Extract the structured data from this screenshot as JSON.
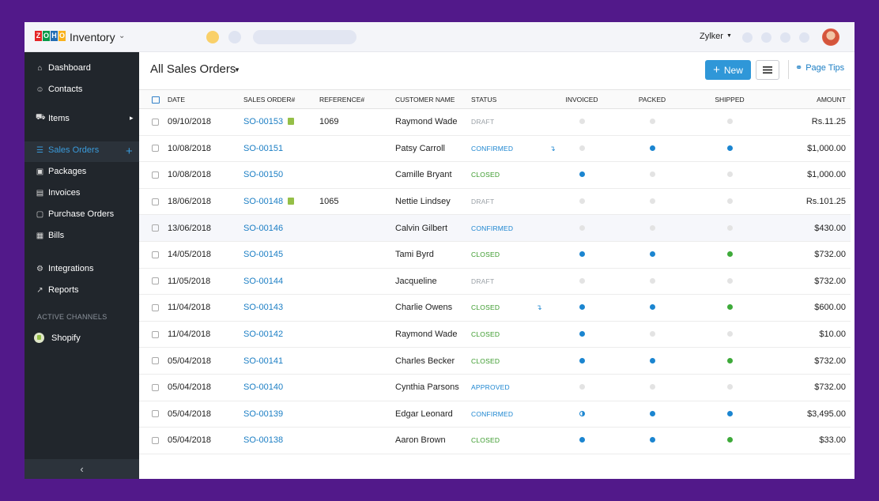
{
  "app": {
    "brand_letters": [
      "Z",
      "O",
      "H",
      "O"
    ],
    "brand_colors": [
      "#e42527",
      "#089949",
      "#226db4",
      "#f9b21d"
    ],
    "name": "Inventory"
  },
  "topbar": {
    "org_name": "Zylker",
    "accent_circle": "#f9d06a",
    "placeholder_circle": "#dfe4f1"
  },
  "sidebar": {
    "items": [
      {
        "label": "Dashboard",
        "icon": "home-icon"
      },
      {
        "label": "Contacts",
        "icon": "user-icon"
      },
      {
        "label": "Items",
        "icon": "basket-icon"
      },
      {
        "label": "Sales Orders",
        "icon": "cart-icon",
        "active": true
      },
      {
        "label": "Packages",
        "icon": "box-icon"
      },
      {
        "label": "Invoices",
        "icon": "document-icon"
      },
      {
        "label": "Purchase Orders",
        "icon": "bag-icon"
      },
      {
        "label": "Bills",
        "icon": "bill-icon"
      },
      {
        "label": "Integrations",
        "icon": "plug-icon"
      },
      {
        "label": "Reports",
        "icon": "chart-icon"
      }
    ],
    "section_title": "ACTIVE CHANNELS",
    "channel": "Shopify"
  },
  "header": {
    "view_title": "All Sales Orders",
    "new_label": "New",
    "page_tips": "Page Tips"
  },
  "columns": {
    "date": "DATE",
    "so": "SALES ORDER#",
    "ref": "REFERENCE#",
    "customer": "CUSTOMER NAME",
    "status": "STATUS",
    "invoiced": "INVOICED",
    "packed": "PACKED",
    "shipped": "SHIPPED",
    "amount": "AMOUNT"
  },
  "rows": [
    {
      "date": "09/10/2018",
      "so": "SO-00153",
      "shopify": true,
      "ref": "1069",
      "customer": "Raymond Wade",
      "status": "DRAFT",
      "dropship": false,
      "invoiced": "none",
      "packed": "none",
      "shipped": "none",
      "amount": "Rs.11.25"
    },
    {
      "date": "10/08/2018",
      "so": "SO-00151",
      "shopify": false,
      "ref": "",
      "customer": "Patsy Carroll",
      "status": "CONFIRMED",
      "dropship": true,
      "invoiced": "none",
      "packed": "blue",
      "shipped": "blue",
      "amount": "$1,000.00"
    },
    {
      "date": "10/08/2018",
      "so": "SO-00150",
      "shopify": false,
      "ref": "",
      "customer": "Camille Bryant",
      "status": "CLOSED",
      "dropship": false,
      "invoiced": "blue",
      "packed": "none",
      "shipped": "none",
      "amount": "$1,000.00"
    },
    {
      "date": "18/06/2018",
      "so": "SO-00148",
      "shopify": true,
      "ref": "1065",
      "customer": "Nettie Lindsey",
      "status": "DRAFT",
      "dropship": false,
      "invoiced": "none",
      "packed": "none",
      "shipped": "none",
      "amount": "Rs.101.25"
    },
    {
      "date": "13/06/2018",
      "so": "SO-00146",
      "shopify": false,
      "ref": "",
      "customer": "Calvin Gilbert",
      "status": "CONFIRMED",
      "dropship": false,
      "invoiced": "none",
      "packed": "none",
      "shipped": "none",
      "amount": "$430.00"
    },
    {
      "date": "14/05/2018",
      "so": "SO-00145",
      "shopify": false,
      "ref": "",
      "customer": "Tami Byrd",
      "status": "CLOSED",
      "dropship": false,
      "invoiced": "blue",
      "packed": "blue",
      "shipped": "green",
      "amount": "$732.00"
    },
    {
      "date": "11/05/2018",
      "so": "SO-00144",
      "shopify": false,
      "ref": "",
      "customer": "Jacqueline",
      "status": "DRAFT",
      "dropship": false,
      "invoiced": "none",
      "packed": "none",
      "shipped": "none",
      "amount": "$732.00"
    },
    {
      "date": "11/04/2018",
      "so": "SO-00143",
      "shopify": false,
      "ref": "",
      "customer": "Charlie Owens",
      "status": "CLOSED",
      "dropship": true,
      "invoiced": "blue",
      "packed": "blue",
      "shipped": "green",
      "amount": "$600.00"
    },
    {
      "date": "11/04/2018",
      "so": "SO-00142",
      "shopify": false,
      "ref": "",
      "customer": "Raymond Wade",
      "status": "CLOSED",
      "dropship": false,
      "invoiced": "blue",
      "packed": "none",
      "shipped": "none",
      "amount": "$10.00"
    },
    {
      "date": "05/04/2018",
      "so": "SO-00141",
      "shopify": false,
      "ref": "",
      "customer": "Charles Becker",
      "status": "CLOSED",
      "dropship": false,
      "invoiced": "blue",
      "packed": "blue",
      "shipped": "green",
      "amount": "$732.00"
    },
    {
      "date": "05/04/2018",
      "so": "SO-00140",
      "shopify": false,
      "ref": "",
      "customer": "Cynthia Parsons",
      "status": "APPROVED",
      "dropship": false,
      "invoiced": "none",
      "packed": "none",
      "shipped": "none",
      "amount": "$732.00"
    },
    {
      "date": "05/04/2018",
      "so": "SO-00139",
      "shopify": false,
      "ref": "",
      "customer": "Edgar Leonard",
      "status": "CONFIRMED",
      "dropship": false,
      "invoiced": "half",
      "packed": "blue",
      "shipped": "blue",
      "amount": "$3,495.00"
    },
    {
      "date": "05/04/2018",
      "so": "SO-00138",
      "shopify": false,
      "ref": "",
      "customer": "Aaron Brown",
      "status": "CLOSED",
      "dropship": false,
      "invoiced": "blue",
      "packed": "blue",
      "shipped": "green",
      "amount": "$33.00"
    }
  ]
}
